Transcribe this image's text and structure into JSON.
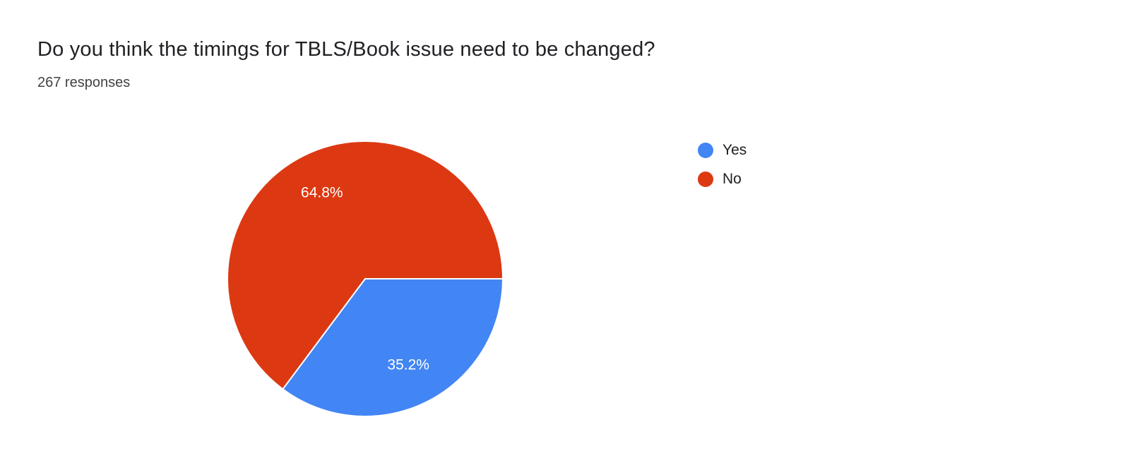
{
  "header": {
    "title": "Do you think the timings for TBLS/Book issue need to be changed?",
    "responses": "267 responses"
  },
  "chart_data": {
    "type": "pie",
    "title": "Do you think the timings for TBLS/Book issue need to be changed?",
    "subtitle": "267 responses",
    "responses_count": 267,
    "labels": [
      "Yes",
      "No"
    ],
    "values": [
      35.2,
      64.8
    ],
    "slice_labels": [
      "35.2%",
      "64.8%"
    ],
    "colors": [
      "#4285f4",
      "#dc3912"
    ],
    "slice_label_color": "#ffffff",
    "start_angle_deg": 0,
    "direction": "clockwise",
    "legend_position": "right"
  }
}
